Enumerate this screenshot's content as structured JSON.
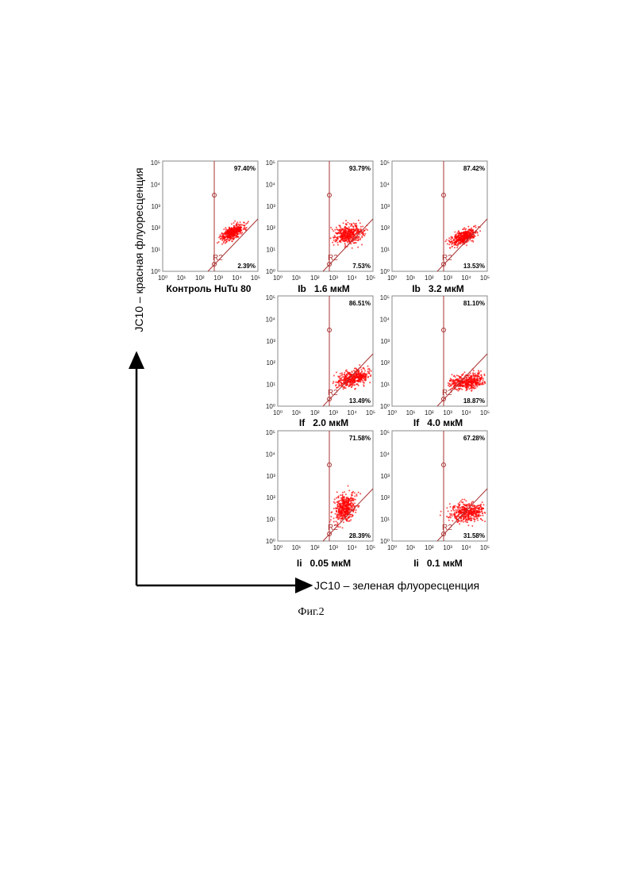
{
  "figure": {
    "y_axis_title": "JC10 – красная флуоресценция",
    "x_axis_title": "JC10 – зеленая флуоресценция",
    "caption": "Фиг.2",
    "tick_labels": [
      "10⁰",
      "10¹",
      "10²",
      "10³",
      "10⁴",
      "10⁵"
    ],
    "gate_label": "R2",
    "panels": [
      {
        "label": "Контроль HuTu 80",
        "upper": "97.40%",
        "lower": "2.39%"
      },
      {
        "label": "Ib   1.6 мкМ",
        "upper": "93.79%",
        "lower": "7.53%"
      },
      {
        "label": "Ib   3.2 мкМ",
        "upper": "87.42%",
        "lower": "13.53%"
      },
      {
        "label": "If   2.0 мкМ",
        "upper": "86.51%",
        "lower": "13.49%"
      },
      {
        "label": "If   4.0 мкМ",
        "upper": "81.10%",
        "lower": "18.87%"
      },
      {
        "label": "Ii   0.05 мкМ",
        "upper": "71.58%",
        "lower": "28.39%"
      },
      {
        "label": "Ii   0.1 мкМ",
        "upper": "67.28%",
        "lower": "31.58%"
      }
    ]
  }
}
